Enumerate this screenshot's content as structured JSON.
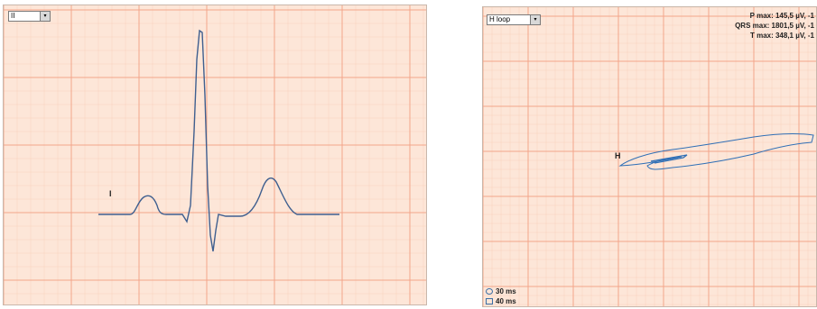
{
  "left_panel": {
    "lead_select": {
      "value": "II",
      "arrow": "▾"
    },
    "wave_label": "I",
    "colors": {
      "grid_major": "#f2a58a",
      "grid_minor": "#f8cdb8",
      "trace": "#3f5f8f",
      "background": "#fde6d8"
    }
  },
  "right_panel": {
    "loop_select": {
      "value": "H loop",
      "arrow": "▾"
    },
    "plane_label": "H",
    "stats": {
      "p_max": "P max: 145,5 µV, -1",
      "qrs_max": "QRS max: 1801,5 µV, -1",
      "t_max": "T max: 348,1 µV, -1"
    },
    "legend": {
      "circle_label": "30 ms",
      "square_label": "40 ms"
    },
    "colors": {
      "loop": "#2f6fb6"
    }
  }
}
